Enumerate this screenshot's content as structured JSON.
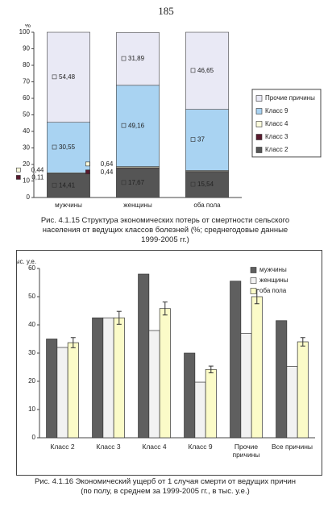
{
  "page_number": "185",
  "chart_data": [
    {
      "type": "stacked",
      "caption": "Рис. 4.1.15 Структура экономических потерь от смертности сельского населения от ведущих классов болезней (%; среднегодовые данные 1999-2005 гг.)",
      "y_label": "%",
      "categories": [
        "мужчины",
        "женщины",
        "оба пола"
      ],
      "ylim": [
        0,
        100
      ],
      "yticks": [
        0,
        10,
        20,
        30,
        40,
        50,
        60,
        70,
        80,
        90,
        100
      ],
      "series": [
        {
          "name": "Класс 2",
          "color": "#555555",
          "values": [
            14.41,
            17.67,
            15.54
          ],
          "value_labels": [
            "14,41",
            "17,67",
            "15,54"
          ]
        },
        {
          "name": "Класс 3",
          "color": "#5a1a2e",
          "values": [
            0.11,
            0.44,
            0.3
          ],
          "value_labels": [
            "0,11",
            "0,44",
            null
          ]
        },
        {
          "name": "Класс 4",
          "color": "#fbfbdc",
          "values": [
            0.44,
            0.64,
            0.5
          ],
          "value_labels": [
            "0,44",
            "0,64",
            null
          ]
        },
        {
          "name": "Класс 9",
          "color": "#a9d3f2",
          "values": [
            30.55,
            49.16,
            37
          ],
          "value_labels": [
            "30,55",
            "49,16",
            "37"
          ]
        },
        {
          "name": "Прочие причины",
          "color": "#e9e9f5",
          "values": [
            54.48,
            31.89,
            46.65
          ],
          "value_labels": [
            "54,48",
            "31,89",
            "46,65"
          ]
        }
      ]
    },
    {
      "type": "grouped",
      "caption": "Рис. 4.1.16 Экономический ущерб от 1 случая смерти от ведущих причин (по полу, в среднем за 1999-2005 гг., в тыс. у.е.)",
      "y_label": "тыс. у.е.",
      "categories": [
        "Класс 2",
        "Класс 3",
        "Класс 4",
        "Класс 9",
        "Прочие причины",
        "Все причины"
      ],
      "ylim": [
        0,
        60
      ],
      "yticks": [
        0,
        10,
        20,
        30,
        40,
        50,
        60
      ],
      "series": [
        {
          "name": "мужчины",
          "color": "#5f5f5f",
          "values": [
            35,
            42.5,
            58,
            30,
            55.5,
            41.5
          ]
        },
        {
          "name": "женщины",
          "color": "#f2f2f2",
          "values": [
            32,
            42.5,
            38,
            19.7,
            37,
            25.3
          ]
        },
        {
          "name": "оба пола",
          "color": "#fbfbc8",
          "values": [
            33.7,
            42.5,
            45.8,
            24.2,
            50,
            34
          ],
          "errors": [
            1.8,
            2.3,
            2.3,
            1.2,
            2.5,
            1.5
          ]
        }
      ]
    }
  ]
}
